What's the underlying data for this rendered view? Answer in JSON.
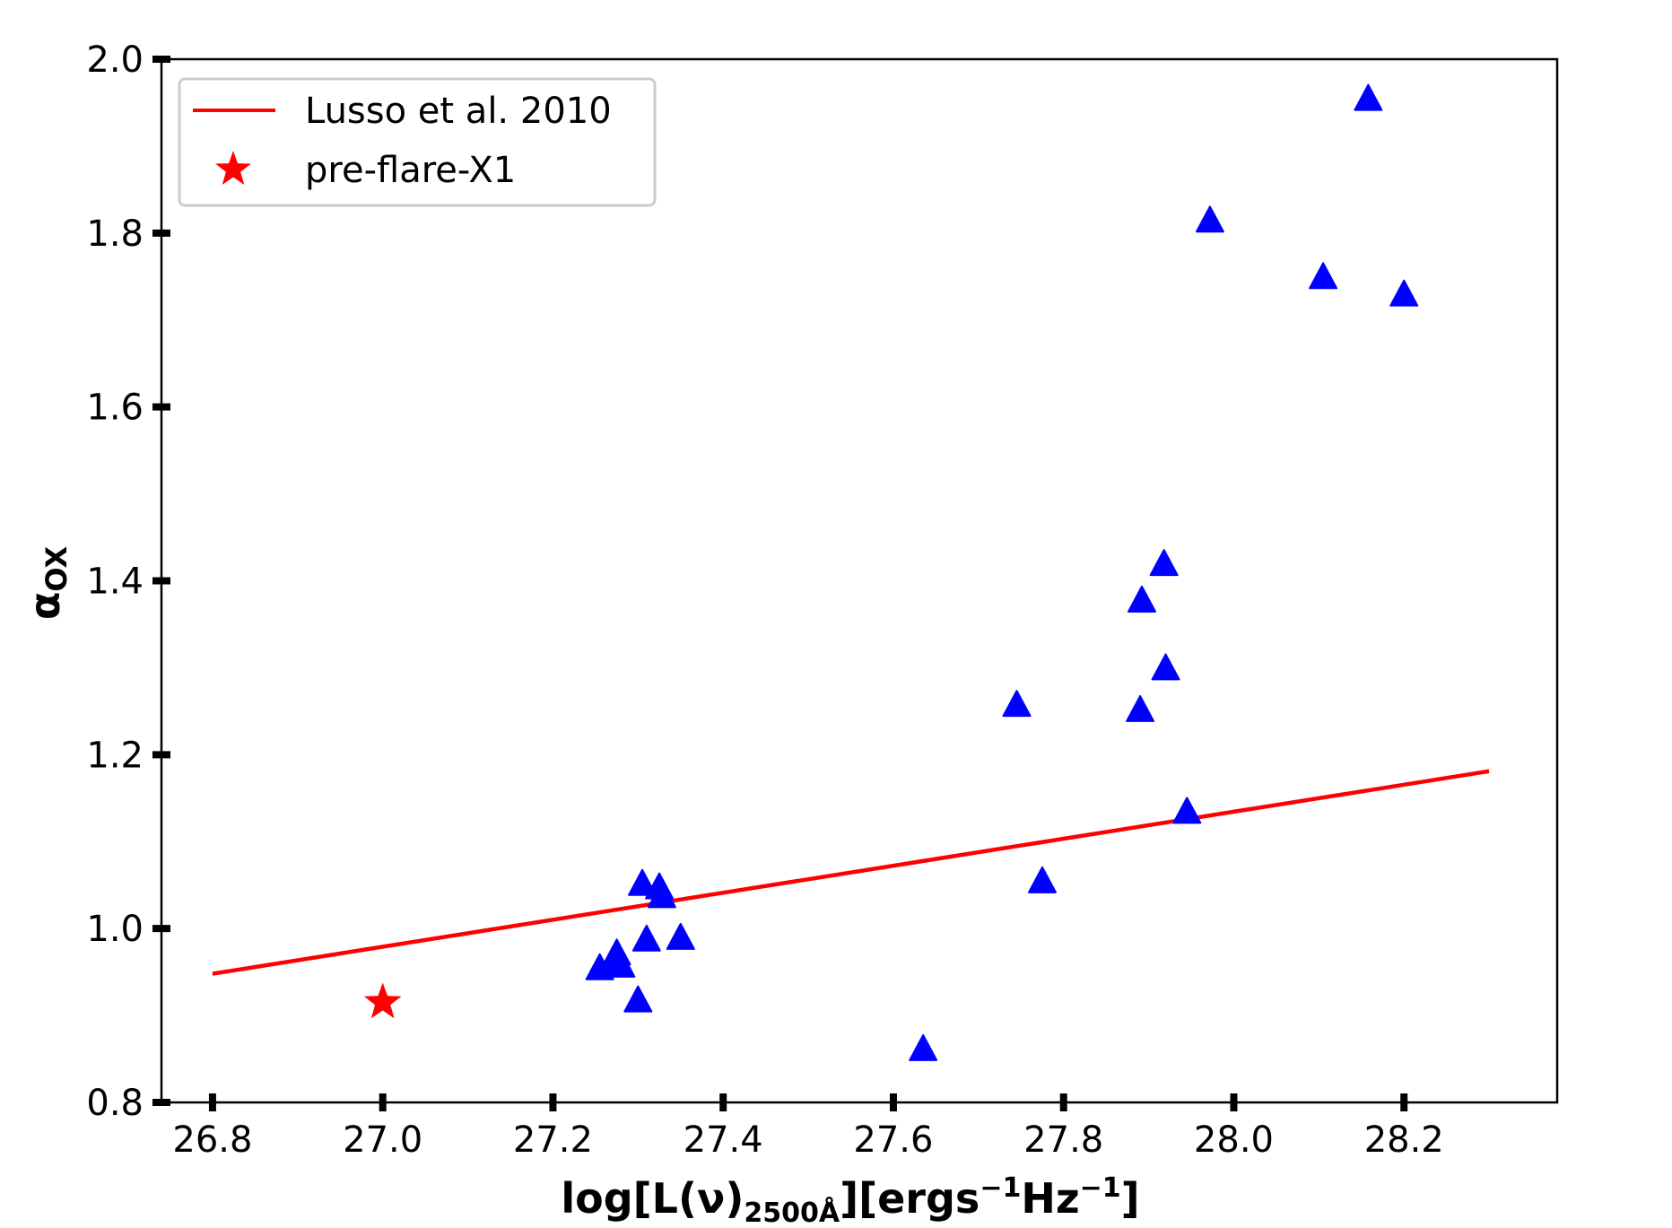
{
  "chart_data": {
    "type": "scatter",
    "xlabel_parts": {
      "base": "log[L(ν)",
      "sub": "2500Å",
      "mid1": "][ergs",
      "sup1": "−1",
      "mid2": "Hz",
      "sup2": "−1",
      "end": "]"
    },
    "ylabel_parts": {
      "base": "α",
      "sub": "OX"
    },
    "xlim": [
      26.74,
      28.38
    ],
    "ylim": [
      0.8,
      2.0
    ],
    "xticks": [
      "26.8",
      "27.0",
      "27.2",
      "27.4",
      "27.6",
      "27.8",
      "28.0",
      "28.2"
    ],
    "yticks": [
      "0.8",
      "1.0",
      "1.2",
      "1.4",
      "1.6",
      "1.8",
      "2.0"
    ],
    "legend_position": "upper-left",
    "legend": [
      {
        "label": "Lusso et al. 2010",
        "marker": "line",
        "color": "#ff0000"
      },
      {
        "label": "pre-flare-X1",
        "marker": "star",
        "color": "#ff0000"
      }
    ],
    "series": [
      {
        "name": "Lusso et al. 2010",
        "kind": "line",
        "color": "#ff0000",
        "x": [
          26.8,
          28.3
        ],
        "y": [
          0.948,
          1.181
        ]
      },
      {
        "name": "pre-flare-X1",
        "kind": "star",
        "color": "#ff0000",
        "x": [
          27.0
        ],
        "y": [
          0.915
        ]
      },
      {
        "kind": "triangle",
        "color": "#0000ff",
        "x": [
          27.255,
          27.27,
          27.275,
          27.28,
          27.3,
          27.305,
          27.31,
          27.325,
          27.328,
          27.35,
          27.635,
          27.745,
          27.775,
          27.89,
          27.892,
          27.918,
          27.92,
          27.945,
          27.972,
          28.105,
          28.158,
          28.2
        ],
        "y": [
          0.955,
          0.96,
          0.972,
          0.958,
          0.918,
          1.052,
          0.988,
          1.048,
          1.038,
          0.99,
          0.862,
          1.258,
          1.055,
          1.252,
          1.378,
          1.42,
          1.3,
          1.135,
          1.815,
          1.75,
          1.955,
          1.73
        ]
      }
    ]
  }
}
